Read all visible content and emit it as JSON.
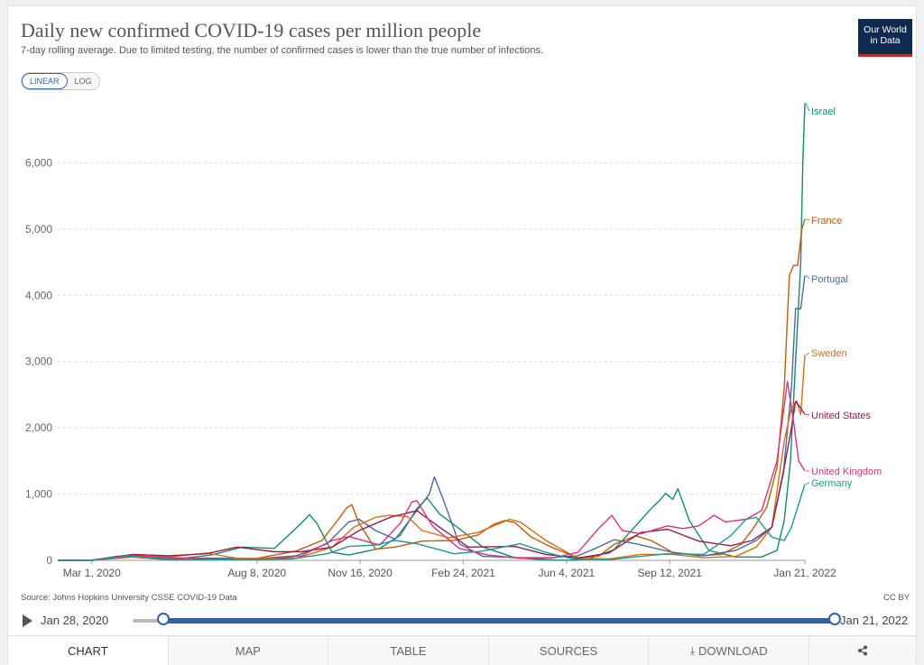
{
  "title": "Daily new confirmed COVID-19 cases per million people",
  "subtitle": "7-day rolling average. Due to limited testing, the number of confirmed cases is lower than the true number of infections.",
  "logo": {
    "line1": "Our World",
    "line2": "in Data"
  },
  "scale_toggle": {
    "linear": "LINEAR",
    "log": "LOG",
    "selected": "linear"
  },
  "source": "Source: Johns Hopkins University CSSE COVID-19 Data",
  "license": "CC BY",
  "timeline": {
    "start_label": "Jan 28, 2020",
    "end_label": "Jan 21, 2022",
    "play_icon": "play-icon"
  },
  "tabs": [
    {
      "label": "CHART",
      "active": true
    },
    {
      "label": "MAP"
    },
    {
      "label": "TABLE"
    },
    {
      "label": "SOURCES"
    },
    {
      "label": "DOWNLOAD",
      "icon": "download-icon"
    },
    {
      "label": "",
      "icon": "share-icon"
    }
  ],
  "colors": {
    "accent": "#3360a9",
    "logo_bg": "#0e2b4f",
    "logo_bar": "#c3282d"
  },
  "chart_data": {
    "type": "line",
    "title": "Daily new confirmed COVID-19 cases per million people",
    "y_ticks": [
      "0",
      "1,000",
      "2,000",
      "3,000",
      "4,000",
      "5,000",
      "6,000"
    ],
    "ylim": [
      0,
      7000
    ],
    "y_tick_values": [
      0,
      1000,
      2000,
      3000,
      4000,
      5000,
      6000
    ],
    "x_ticks": [
      "Mar 1, 2020",
      "Aug 8, 2020",
      "Nov 16, 2020",
      "Feb 24, 2021",
      "Jun 4, 2021",
      "Sep 12, 2021",
      "Jan 21, 2022"
    ],
    "x_tick_dates": [
      "2020-03-01",
      "2020-08-08",
      "2020-11-16",
      "2021-02-24",
      "2021-06-04",
      "2021-09-12",
      "2022-01-21"
    ],
    "xlim": [
      "2020-01-28",
      "2022-01-21"
    ],
    "grid": true,
    "legend": "right-end labels",
    "series": [
      {
        "name": "Israel",
        "color": "#168b6a",
        "points": [
          [
            "2020-01-28",
            0
          ],
          [
            "2020-03-01",
            5
          ],
          [
            "2020-04-01",
            60
          ],
          [
            "2020-05-15",
            8
          ],
          [
            "2020-06-25",
            80
          ],
          [
            "2020-07-25",
            200
          ],
          [
            "2020-08-25",
            180
          ],
          [
            "2020-09-20",
            560
          ],
          [
            "2020-09-28",
            690
          ],
          [
            "2020-10-05",
            560
          ],
          [
            "2020-10-20",
            120
          ],
          [
            "2020-11-05",
            80
          ],
          [
            "2020-12-05",
            180
          ],
          [
            "2020-12-25",
            380
          ],
          [
            "2021-01-10",
            780
          ],
          [
            "2021-01-20",
            940
          ],
          [
            "2021-02-01",
            700
          ],
          [
            "2021-02-20",
            480
          ],
          [
            "2021-03-15",
            200
          ],
          [
            "2021-04-15",
            40
          ],
          [
            "2021-05-15",
            5
          ],
          [
            "2021-06-10",
            2
          ],
          [
            "2021-06-25",
            20
          ],
          [
            "2021-07-20",
            160
          ],
          [
            "2021-08-10",
            520
          ],
          [
            "2021-08-25",
            780
          ],
          [
            "2021-09-02",
            900
          ],
          [
            "2021-09-08",
            1010
          ],
          [
            "2021-09-15",
            920
          ],
          [
            "2021-09-20",
            1080
          ],
          [
            "2021-10-01",
            600
          ],
          [
            "2021-10-20",
            150
          ],
          [
            "2021-11-15",
            50
          ],
          [
            "2021-12-10",
            50
          ],
          [
            "2021-12-25",
            150
          ],
          [
            "2022-01-01",
            600
          ],
          [
            "2022-01-07",
            1500
          ],
          [
            "2022-01-12",
            3000
          ],
          [
            "2022-01-17",
            4500
          ],
          [
            "2022-01-19",
            6000
          ],
          [
            "2022-01-21",
            6900
          ]
        ]
      },
      {
        "name": "France",
        "color": "#c15b11",
        "points": [
          [
            "2020-01-28",
            0
          ],
          [
            "2020-03-01",
            2
          ],
          [
            "2020-04-01",
            60
          ],
          [
            "2020-05-15",
            8
          ],
          [
            "2020-07-01",
            10
          ],
          [
            "2020-08-08",
            30
          ],
          [
            "2020-09-15",
            140
          ],
          [
            "2020-10-10",
            300
          ],
          [
            "2020-10-25",
            600
          ],
          [
            "2020-11-03",
            790
          ],
          [
            "2020-11-08",
            840
          ],
          [
            "2020-11-15",
            560
          ],
          [
            "2020-12-01",
            170
          ],
          [
            "2020-12-20",
            200
          ],
          [
            "2021-01-15",
            290
          ],
          [
            "2021-02-15",
            300
          ],
          [
            "2021-03-10",
            380
          ],
          [
            "2021-03-25",
            540
          ],
          [
            "2021-04-05",
            600
          ],
          [
            "2021-04-15",
            570
          ],
          [
            "2021-05-01",
            350
          ],
          [
            "2021-05-20",
            200
          ],
          [
            "2021-06-15",
            40
          ],
          [
            "2021-07-05",
            60
          ],
          [
            "2021-07-20",
            240
          ],
          [
            "2021-08-10",
            370
          ],
          [
            "2021-08-25",
            300
          ],
          [
            "2021-09-15",
            120
          ],
          [
            "2021-10-10",
            70
          ],
          [
            "2021-11-01",
            90
          ],
          [
            "2021-11-20",
            240
          ],
          [
            "2021-12-01",
            460
          ],
          [
            "2021-12-15",
            800
          ],
          [
            "2021-12-25",
            1400
          ],
          [
            "2022-01-01",
            2600
          ],
          [
            "2022-01-06",
            4300
          ],
          [
            "2022-01-10",
            4450
          ],
          [
            "2022-01-14",
            4450
          ],
          [
            "2022-01-18",
            5000
          ],
          [
            "2022-01-21",
            5150
          ]
        ]
      },
      {
        "name": "Portugal",
        "color": "#4c6a9c",
        "points": [
          [
            "2020-01-28",
            0
          ],
          [
            "2020-03-01",
            0
          ],
          [
            "2020-03-25",
            60
          ],
          [
            "2020-04-10",
            80
          ],
          [
            "2020-05-10",
            30
          ],
          [
            "2020-06-20",
            35
          ],
          [
            "2020-08-08",
            25
          ],
          [
            "2020-09-15",
            70
          ],
          [
            "2020-10-15",
            250
          ],
          [
            "2020-11-05",
            580
          ],
          [
            "2020-11-15",
            620
          ],
          [
            "2020-12-01",
            450
          ],
          [
            "2020-12-20",
            320
          ],
          [
            "2021-01-10",
            750
          ],
          [
            "2021-01-22",
            1000
          ],
          [
            "2021-01-27",
            1260
          ],
          [
            "2021-02-05",
            900
          ],
          [
            "2021-02-20",
            250
          ],
          [
            "2021-03-15",
            60
          ],
          [
            "2021-04-20",
            40
          ],
          [
            "2021-05-20",
            40
          ],
          [
            "2021-06-15",
            70
          ],
          [
            "2021-07-05",
            200
          ],
          [
            "2021-07-20",
            310
          ],
          [
            "2021-08-10",
            250
          ],
          [
            "2021-09-15",
            120
          ],
          [
            "2021-10-15",
            70
          ],
          [
            "2021-11-15",
            150
          ],
          [
            "2021-12-05",
            300
          ],
          [
            "2021-12-20",
            500
          ],
          [
            "2021-12-31",
            1300
          ],
          [
            "2022-01-08",
            2600
          ],
          [
            "2022-01-12",
            3800
          ],
          [
            "2022-01-17",
            3800
          ],
          [
            "2022-01-21",
            4300
          ]
        ]
      },
      {
        "name": "Sweden",
        "color": "#d66f14",
        "points": [
          [
            "2020-01-28",
            0
          ],
          [
            "2020-03-01",
            2
          ],
          [
            "2020-04-10",
            50
          ],
          [
            "2020-05-20",
            60
          ],
          [
            "2020-06-20",
            110
          ],
          [
            "2020-07-20",
            30
          ],
          [
            "2020-09-15",
            30
          ],
          [
            "2020-10-20",
            200
          ],
          [
            "2020-11-10",
            500
          ],
          [
            "2020-12-01",
            650
          ],
          [
            "2020-12-15",
            680
          ],
          [
            "2021-01-01",
            660
          ],
          [
            "2021-01-15",
            450
          ],
          [
            "2021-02-10",
            340
          ],
          [
            "2021-03-10",
            420
          ],
          [
            "2021-04-10",
            620
          ],
          [
            "2021-04-20",
            580
          ],
          [
            "2021-05-15",
            300
          ],
          [
            "2021-06-15",
            30
          ],
          [
            "2021-07-15",
            20
          ],
          [
            "2021-08-15",
            90
          ],
          [
            "2021-09-15",
            90
          ],
          [
            "2021-10-15",
            40
          ],
          [
            "2021-11-15",
            60
          ],
          [
            "2021-12-05",
            200
          ],
          [
            "2021-12-20",
            500
          ],
          [
            "2022-01-01",
            1800
          ],
          [
            "2022-01-08",
            2300
          ],
          [
            "2022-01-13",
            2400
          ],
          [
            "2022-01-17",
            2200
          ],
          [
            "2022-01-21",
            3100
          ]
        ]
      },
      {
        "name": "United States",
        "color": "#971c4c",
        "points": [
          [
            "2020-01-28",
            0
          ],
          [
            "2020-03-01",
            0
          ],
          [
            "2020-04-10",
            90
          ],
          [
            "2020-05-15",
            70
          ],
          [
            "2020-06-20",
            100
          ],
          [
            "2020-07-20",
            200
          ],
          [
            "2020-08-25",
            130
          ],
          [
            "2020-09-20",
            130
          ],
          [
            "2020-10-20",
            200
          ],
          [
            "2020-11-15",
            450
          ],
          [
            "2020-12-15",
            650
          ],
          [
            "2021-01-10",
            750
          ],
          [
            "2021-02-01",
            500
          ],
          [
            "2021-03-01",
            200
          ],
          [
            "2021-04-15",
            210
          ],
          [
            "2021-05-15",
            90
          ],
          [
            "2021-06-15",
            35
          ],
          [
            "2021-07-15",
            110
          ],
          [
            "2021-08-15",
            420
          ],
          [
            "2021-09-10",
            470
          ],
          [
            "2021-10-10",
            290
          ],
          [
            "2021-11-10",
            220
          ],
          [
            "2021-12-01",
            300
          ],
          [
            "2021-12-20",
            500
          ],
          [
            "2022-01-01",
            1400
          ],
          [
            "2022-01-08",
            2000
          ],
          [
            "2022-01-12",
            2400
          ],
          [
            "2022-01-17",
            2300
          ],
          [
            "2022-01-21",
            2200
          ]
        ]
      },
      {
        "name": "United Kingdom",
        "color": "#d6347f",
        "points": [
          [
            "2020-01-28",
            0
          ],
          [
            "2020-03-01",
            0
          ],
          [
            "2020-04-15",
            70
          ],
          [
            "2020-05-20",
            40
          ],
          [
            "2020-07-15",
            10
          ],
          [
            "2020-08-20",
            15
          ],
          [
            "2020-09-20",
            70
          ],
          [
            "2020-10-20",
            300
          ],
          [
            "2020-11-05",
            360
          ],
          [
            "2020-12-05",
            230
          ],
          [
            "2020-12-25",
            560
          ],
          [
            "2021-01-05",
            880
          ],
          [
            "2021-01-10",
            900
          ],
          [
            "2021-01-25",
            520
          ],
          [
            "2021-02-20",
            180
          ],
          [
            "2021-03-20",
            80
          ],
          [
            "2021-04-20",
            30
          ],
          [
            "2021-05-20",
            30
          ],
          [
            "2021-06-15",
            120
          ],
          [
            "2021-07-05",
            480
          ],
          [
            "2021-07-18",
            680
          ],
          [
            "2021-07-28",
            450
          ],
          [
            "2021-08-15",
            400
          ],
          [
            "2021-09-10",
            520
          ],
          [
            "2021-09-25",
            480
          ],
          [
            "2021-10-10",
            520
          ],
          [
            "2021-10-25",
            680
          ],
          [
            "2021-11-05",
            580
          ],
          [
            "2021-11-25",
            620
          ],
          [
            "2021-12-10",
            750
          ],
          [
            "2021-12-25",
            1500
          ],
          [
            "2022-01-04",
            2700
          ],
          [
            "2022-01-10",
            2100
          ],
          [
            "2022-01-15",
            1500
          ],
          [
            "2022-01-21",
            1350
          ]
        ]
      },
      {
        "name": "Germany",
        "color": "#1e9993",
        "points": [
          [
            "2020-01-28",
            0
          ],
          [
            "2020-03-01",
            0
          ],
          [
            "2020-04-05",
            70
          ],
          [
            "2020-05-10",
            15
          ],
          [
            "2020-07-10",
            10
          ],
          [
            "2020-09-10",
            20
          ],
          [
            "2020-10-15",
            100
          ],
          [
            "2020-11-05",
            210
          ],
          [
            "2020-12-01",
            230
          ],
          [
            "2020-12-20",
            300
          ],
          [
            "2021-01-10",
            250
          ],
          [
            "2021-02-15",
            100
          ],
          [
            "2021-03-15",
            140
          ],
          [
            "2021-04-20",
            250
          ],
          [
            "2021-05-15",
            120
          ],
          [
            "2021-06-10",
            20
          ],
          [
            "2021-07-15",
            10
          ],
          [
            "2021-08-15",
            60
          ],
          [
            "2021-09-10",
            100
          ],
          [
            "2021-10-15",
            90
          ],
          [
            "2021-11-10",
            370
          ],
          [
            "2021-11-25",
            620
          ],
          [
            "2021-12-05",
            650
          ],
          [
            "2021-12-20",
            350
          ],
          [
            "2022-01-01",
            300
          ],
          [
            "2022-01-08",
            500
          ],
          [
            "2022-01-14",
            800
          ],
          [
            "2022-01-21",
            1150
          ]
        ]
      }
    ]
  }
}
